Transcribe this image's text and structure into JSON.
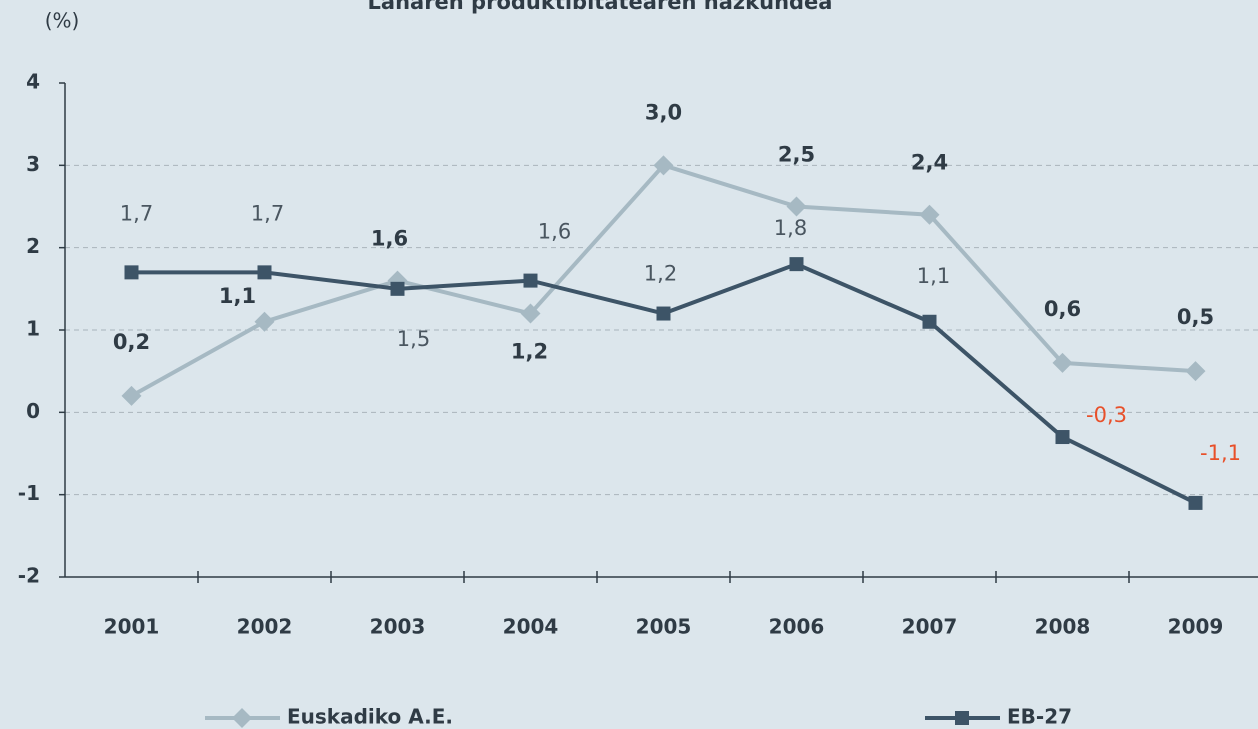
{
  "chart_data": {
    "type": "line",
    "title": "Lanaren produktibitatearen hazkundea",
    "ylabel": "(%)",
    "categories": [
      "2001",
      "2002",
      "2003",
      "2004",
      "2005",
      "2006",
      "2007",
      "2008",
      "2009"
    ],
    "series": [
      {
        "name": "Euskadiko A.E.",
        "color": "#a6b9c3",
        "marker": "diamond",
        "label_bold": true,
        "label_color": "#2f3b45",
        "values": [
          0.2,
          1.1,
          1.6,
          1.2,
          3.0,
          2.5,
          2.4,
          0.6,
          0.5
        ],
        "value_labels": [
          "0,2",
          "1,1",
          "1,6",
          "1,2",
          "3,0",
          "2,5",
          "2,4",
          "0,6",
          "0,5"
        ]
      },
      {
        "name": "EB-27",
        "color": "#3d5467",
        "marker": "square",
        "label_bold": false,
        "label_color": "#4a5660",
        "negative_color": "#e8502a",
        "values": [
          1.7,
          1.7,
          1.5,
          1.6,
          1.2,
          1.8,
          1.1,
          -0.3,
          -1.1
        ],
        "value_labels": [
          "1,7",
          "1,7",
          "1,5",
          "1,6",
          "1,2",
          "1,8",
          "1,1",
          "-0,3",
          "-1,1"
        ]
      }
    ],
    "ylim": [
      -2,
      4
    ],
    "yticks": [
      -2,
      -1,
      0,
      1,
      2,
      3,
      4
    ],
    "grid": true
  }
}
